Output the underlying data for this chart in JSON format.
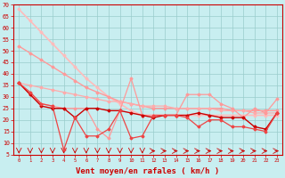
{
  "background_color": "#c8eef0",
  "grid_color": "#99cccc",
  "xlabel": "Vent moyen/en rafales ( km/h )",
  "xlabel_color": "#cc0000",
  "xlabel_fontsize": 6.5,
  "xtick_color": "#cc0000",
  "ytick_color": "#cc0000",
  "ytick_values": [
    5,
    10,
    15,
    20,
    25,
    30,
    35,
    40,
    45,
    50,
    55,
    60,
    65,
    70
  ],
  "x": [
    0,
    1,
    2,
    3,
    4,
    5,
    6,
    7,
    8,
    9,
    10,
    11,
    12,
    13,
    14,
    15,
    16,
    17,
    18,
    19,
    20,
    21,
    22,
    23
  ],
  "line_straight1": [
    68,
    63,
    58,
    53,
    48,
    43,
    38,
    34,
    30,
    27,
    24,
    22,
    22,
    22,
    22,
    22,
    22,
    22,
    22,
    22,
    22,
    22,
    22,
    22
  ],
  "line_straight2": [
    52,
    49,
    46,
    43,
    40,
    37,
    34,
    32,
    30,
    28,
    27,
    26,
    25,
    25,
    25,
    25,
    25,
    25,
    25,
    24,
    24,
    24,
    24,
    24
  ],
  "line_straight3": [
    36,
    35,
    34,
    33,
    32,
    31,
    30,
    29,
    28,
    28,
    27,
    26,
    26,
    26,
    25,
    25,
    25,
    25,
    24,
    24,
    24,
    23,
    23,
    23
  ],
  "line_zigzag1": [
    36,
    31,
    26,
    25,
    25,
    21,
    25,
    25,
    24,
    24,
    23,
    22,
    21,
    22,
    22,
    22,
    23,
    22,
    21,
    21,
    21,
    17,
    16,
    23
  ],
  "line_zigzag2": [
    36,
    32,
    27,
    26,
    7,
    21,
    13,
    13,
    16,
    24,
    12,
    13,
    22,
    22,
    22,
    21,
    17,
    20,
    20,
    17,
    17,
    16,
    15,
    23
  ],
  "line_zigzag3": [
    36,
    31,
    27,
    26,
    25,
    25,
    25,
    16,
    12,
    24,
    38,
    22,
    22,
    22,
    22,
    31,
    31,
    31,
    27,
    25,
    21,
    25,
    23,
    29
  ],
  "col_pink_light": "#ffbbbb",
  "col_pink": "#ff9999",
  "col_red_medium": "#ee4444",
  "col_red_dark": "#cc0000",
  "col_dark": "#990000",
  "ylim": [
    5,
    70
  ],
  "xlim": [
    0,
    23
  ]
}
